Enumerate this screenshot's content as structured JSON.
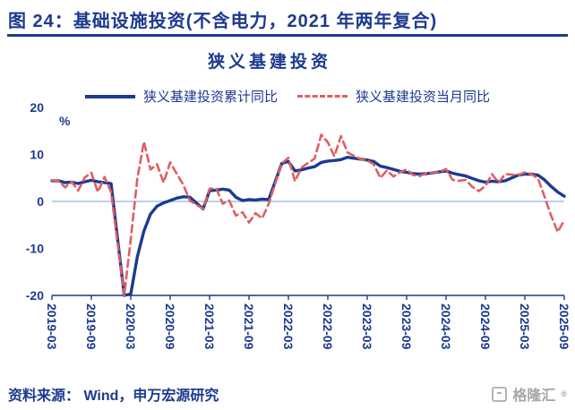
{
  "page": {
    "title": "图 24：基础设施投资(不含电力，2021 年两年复合)",
    "source": "资料来源： Wind，申万宏源研究",
    "watermark": {
      "text": "格隆汇",
      "reg": "®"
    }
  },
  "colors": {
    "navy": "#1c3a8f",
    "red": "#e05f5f",
    "zero_line": "#9dc3e6",
    "brand_grey": "#a6a6a6"
  },
  "chart_data": {
    "type": "line",
    "title": "狭义基建投资",
    "unit_label": "%",
    "ylim": [
      -20,
      20
    ],
    "yticks": [
      20,
      10,
      0,
      -10,
      -20
    ],
    "grid": false,
    "legend_position": "top",
    "note": "2020-02 values (about -30) are clipped at the -20 axis floor; 2021 figures are two-year compound growth rates",
    "xticks": [
      "2019-03",
      "2019-09",
      "2020-03",
      "2020-09",
      "2021-03",
      "2021-09",
      "2022-03",
      "2022-09",
      "2023-03",
      "2023-09",
      "2024-03",
      "2024-09",
      "2025-03",
      "2025-09"
    ],
    "x": [
      "2019-03",
      "2019-04",
      "2019-05",
      "2019-06",
      "2019-07",
      "2019-08",
      "2019-09",
      "2019-10",
      "2019-11",
      "2019-12",
      "2020-02",
      "2020-03",
      "2020-04",
      "2020-05",
      "2020-06",
      "2020-07",
      "2020-08",
      "2020-09",
      "2020-10",
      "2020-11",
      "2020-12",
      "2021-02",
      "2021-03",
      "2021-04",
      "2021-05",
      "2021-06",
      "2021-07",
      "2021-08",
      "2021-09",
      "2021-10",
      "2021-11",
      "2021-12",
      "2022-02",
      "2022-03",
      "2022-04",
      "2022-05",
      "2022-06",
      "2022-07",
      "2022-08",
      "2022-09",
      "2022-10",
      "2022-11",
      "2022-12",
      "2023-02",
      "2023-03",
      "2023-04",
      "2023-05",
      "2023-06",
      "2023-07",
      "2023-08",
      "2023-09",
      "2023-10",
      "2023-11",
      "2023-12",
      "2024-02",
      "2024-03",
      "2024-04",
      "2024-05",
      "2024-06",
      "2024-07",
      "2024-08",
      "2024-09",
      "2024-10",
      "2024-11",
      "2024-12",
      "2025-02",
      "2025-03",
      "2025-04",
      "2025-05",
      "2025-06",
      "2025-07",
      "2025-08",
      "2025-09"
    ],
    "series": [
      {
        "name": "狭义基建投资累计同比",
        "style": "solid",
        "color": "#1c3a8f",
        "values": [
          4.4,
          4.4,
          4.0,
          4.1,
          3.8,
          4.2,
          4.5,
          4.2,
          4.0,
          3.8,
          -30.3,
          -19.7,
          -11.8,
          -6.3,
          -2.7,
          -1.0,
          -0.3,
          0.2,
          0.7,
          1.0,
          0.9,
          -1.6,
          2.3,
          2.4,
          2.6,
          2.4,
          0.9,
          0.2,
          0.4,
          0.3,
          0.5,
          0.4,
          8.1,
          8.5,
          6.5,
          6.7,
          7.1,
          7.4,
          8.3,
          8.6,
          8.7,
          8.9,
          9.4,
          9.0,
          8.8,
          8.5,
          7.5,
          7.2,
          6.8,
          6.4,
          6.2,
          5.9,
          5.8,
          5.9,
          6.3,
          6.5,
          6.0,
          5.7,
          5.4,
          4.9,
          4.4,
          4.1,
          4.3,
          4.2,
          4.4,
          5.6,
          5.8,
          5.8,
          5.6,
          4.6,
          3.2,
          2.0,
          1.1
        ]
      },
      {
        "name": "狭义基建投资当月同比",
        "style": "dashed",
        "color": "#e05f5f",
        "values": [
          4.5,
          4.4,
          3.0,
          4.2,
          2.3,
          5.1,
          6.1,
          2.0,
          5.2,
          2.0,
          -30.3,
          -8.0,
          4.8,
          12.7,
          6.8,
          7.9,
          4.0,
          8.3,
          5.9,
          3.5,
          0.2,
          -1.6,
          2.7,
          2.8,
          -0.5,
          0.2,
          -3.0,
          -2.3,
          -4.5,
          -2.5,
          -3.6,
          -0.5,
          8.1,
          9.3,
          4.3,
          7.2,
          8.2,
          9.1,
          14.2,
          12.6,
          9.6,
          13.9,
          10.4,
          9.0,
          8.7,
          7.9,
          5.0,
          6.6,
          5.3,
          6.2,
          6.8,
          5.6,
          5.4,
          6.0,
          6.3,
          6.9,
          4.6,
          4.4,
          4.6,
          3.1,
          2.2,
          3.3,
          5.8,
          4.0,
          5.8,
          5.6,
          6.2,
          5.8,
          4.9,
          1.0,
          -3.0,
          -6.5,
          -4.0
        ]
      }
    ]
  }
}
